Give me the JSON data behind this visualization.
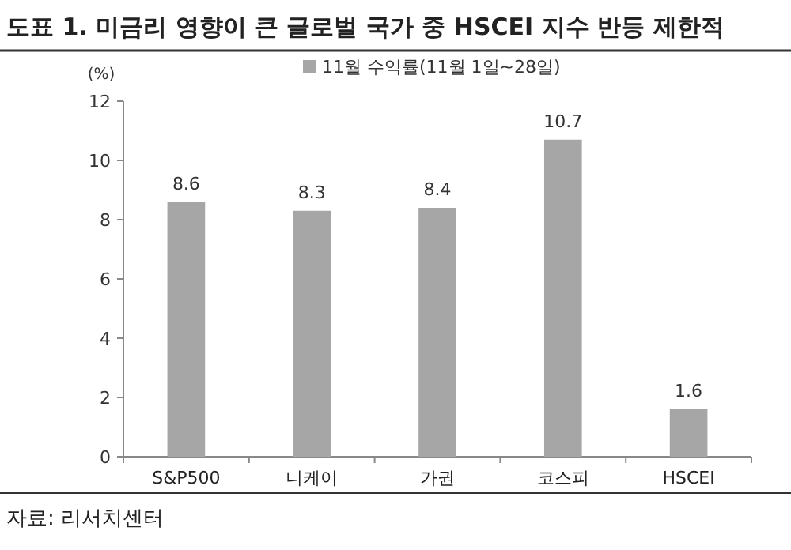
{
  "chart_data": {
    "type": "bar",
    "title": "도표 1. 미금리 영향이 큰 글로벌 국가 중 HSCEI 지수 반등 제한적",
    "ylabel": "(%)",
    "categories": [
      "S&P500",
      "니케이",
      "가권",
      "코스피",
      "HSCEI"
    ],
    "series": [
      {
        "name": "11월 수익률(11월 1일~28일)",
        "color": "#a6a6a6",
        "values": [
          8.6,
          8.3,
          8.4,
          10.7,
          1.6
        ]
      }
    ],
    "ylim": [
      0,
      12
    ],
    "yticks": [
      0,
      2,
      4,
      6,
      8,
      10,
      12
    ],
    "data_labels": true,
    "legend": "top",
    "grid": false,
    "annotations": [
      "자료: 리서치센터"
    ]
  }
}
